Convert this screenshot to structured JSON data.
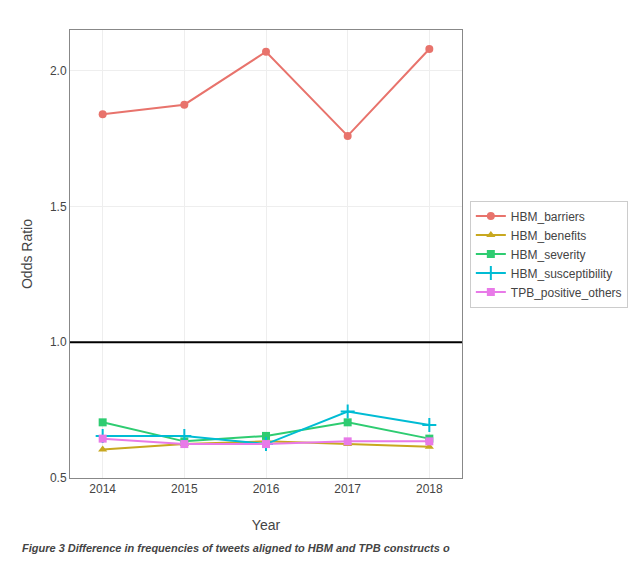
{
  "chart_data": {
    "type": "line",
    "x": [
      2014,
      2015,
      2016,
      2017,
      2018
    ],
    "series": [
      {
        "name": "HBM_barriers",
        "color": "#E8736C",
        "marker": "circle",
        "line_style": "solid",
        "values": [
          1.84,
          1.875,
          2.07,
          1.76,
          2.08
        ]
      },
      {
        "name": "HBM_benefits",
        "color": "#C8A820",
        "marker": "triangle-up",
        "line_style": "solid",
        "values": [
          0.605,
          0.625,
          0.635,
          0.625,
          0.615
        ]
      },
      {
        "name": "HBM_severity",
        "color": "#2ECC71",
        "marker": "square",
        "line_style": "solid",
        "values": [
          0.705,
          0.635,
          0.655,
          0.705,
          0.645
        ]
      },
      {
        "name": "HBM_susceptibility",
        "color": "#00BCD4",
        "marker": "plus",
        "line_style": "solid",
        "values": [
          0.655,
          0.655,
          0.625,
          0.745,
          0.695
        ]
      },
      {
        "name": "TPB_positive_others",
        "color": "#E87AE8",
        "marker": "square",
        "line_style": "solid",
        "values": [
          0.645,
          0.625,
          0.625,
          0.635,
          0.635
        ]
      }
    ],
    "x_label": "Year",
    "y_label": "Odds Ratio",
    "xlim": [
      2013.6,
      2018.4
    ],
    "xticks": [
      2014,
      2015,
      2016,
      2017,
      2018
    ],
    "ylim": [
      0.5,
      2.15
    ],
    "yticks": [
      0.5,
      {
        "value": 1.0,
        "label": "1.0"
      },
      1.5,
      {
        "value": 2.0,
        "label": "2.0"
      }
    ],
    "reference_line": 1.0,
    "grid": true,
    "legend": "right",
    "caption": "Figure 3 Difference in frequencies of tweets aligned to HBM and TPB constructs o"
  }
}
